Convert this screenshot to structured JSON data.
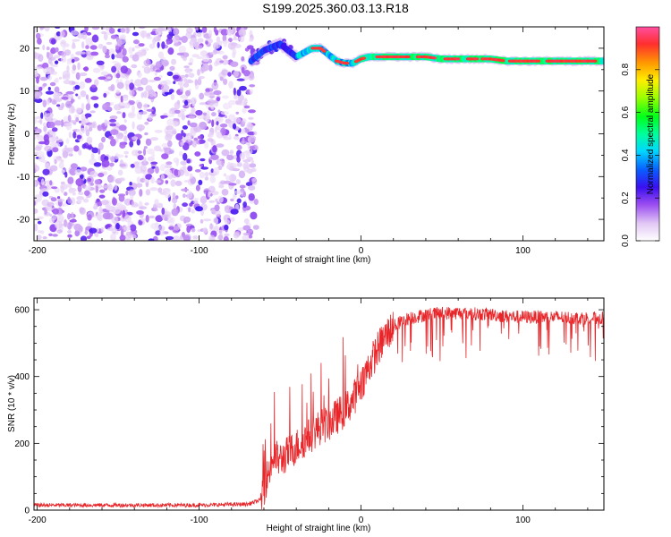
{
  "title": "S199.2025.360.03.13.R18",
  "colors": {
    "trace": "#e8262a",
    "background": "#ffffff",
    "axis": "#000000"
  },
  "chart_data": [
    {
      "type": "heatmap",
      "name": "spectrogram",
      "xlabel": "Height of straight line (km)",
      "ylabel": "Frequency (Hz)",
      "xlim": [
        -202,
        150
      ],
      "ylim": [
        -25,
        25
      ],
      "xticks": [
        -200,
        -100,
        0,
        100
      ],
      "xtick_labels": [
        "-200",
        "-100",
        "0",
        "100"
      ],
      "yticks": [
        -20,
        -10,
        0,
        10,
        20
      ],
      "ytick_labels": [
        "-20",
        "-10",
        "0",
        "10",
        "20"
      ],
      "noise_region_x": [
        -202,
        -68
      ],
      "signal_frequency_track": {
        "x": [
          -68,
          -60,
          -50,
          -45,
          -40,
          -35,
          -30,
          -25,
          -20,
          -15,
          -10,
          -5,
          0,
          5,
          10,
          20,
          30,
          40,
          50,
          60,
          70,
          80,
          90,
          100,
          110,
          120,
          130,
          140,
          150
        ],
        "freq": [
          17.0,
          19.5,
          21.0,
          19.5,
          18.0,
          19.0,
          20.0,
          20.0,
          18.5,
          17.0,
          16.5,
          16.5,
          17.5,
          18.0,
          18.0,
          18.0,
          18.0,
          18.0,
          17.5,
          17.5,
          17.5,
          17.5,
          17.0,
          17.0,
          17.0,
          17.0,
          17.0,
          17.0,
          17.0
        ]
      },
      "colorbar": {
        "label": "Normalized spectral amplitude",
        "range": [
          0.0,
          1.0
        ],
        "ticks": [
          0.0,
          0.2,
          0.4,
          0.6,
          0.8
        ],
        "tick_labels": [
          "0.0",
          "0.2",
          "0.4",
          "0.6",
          "0.8"
        ]
      }
    },
    {
      "type": "line",
      "name": "snr",
      "xlabel": "Height of straight line (km)",
      "ylabel": "SNR (10 * v/v)",
      "xlim": [
        -202,
        150
      ],
      "ylim": [
        0,
        635
      ],
      "xticks": [
        -200,
        -100,
        0,
        100
      ],
      "xtick_labels": [
        "-200",
        "-100",
        "0",
        "100"
      ],
      "yticks": [
        0,
        200,
        400,
        600
      ],
      "ytick_labels": [
        "0",
        "200",
        "400",
        "600"
      ],
      "series": [
        {
          "name": "SNR",
          "x": [
            -202,
            -150,
            -100,
            -70,
            -62,
            -58,
            -54,
            -50,
            -45,
            -40,
            -35,
            -30,
            -25,
            -20,
            -15,
            -10,
            -5,
            0,
            5,
            10,
            15,
            20,
            25,
            30,
            40,
            50,
            60,
            70,
            80,
            90,
            100,
            110,
            120,
            130,
            140,
            150
          ],
          "y": [
            15,
            15,
            15,
            18,
            30,
            100,
            160,
            150,
            170,
            190,
            210,
            230,
            250,
            260,
            280,
            300,
            330,
            380,
            430,
            480,
            520,
            550,
            565,
            575,
            585,
            590,
            590,
            588,
            586,
            580,
            578,
            578,
            578,
            576,
            575,
            575
          ]
        }
      ]
    }
  ]
}
